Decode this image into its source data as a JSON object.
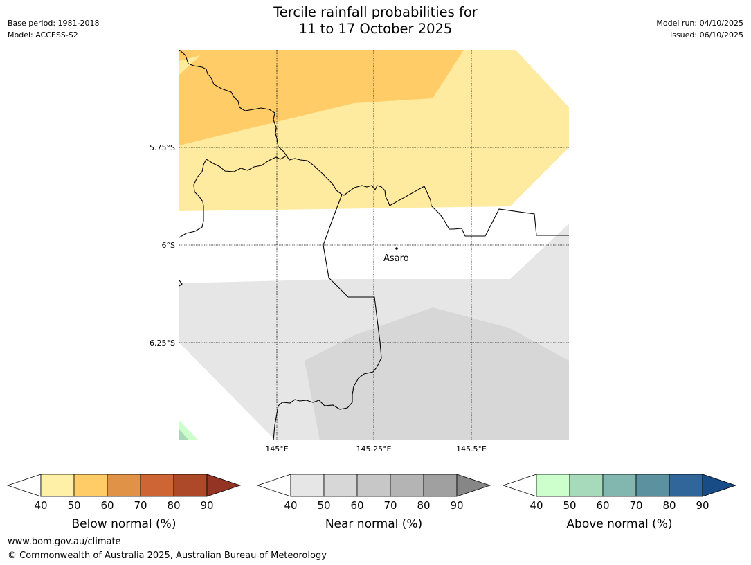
{
  "title": {
    "line1": "Tercile rainfall probabilities for",
    "line2": "11 to 17 October 2025"
  },
  "meta_left": {
    "base_period": "Base period: 1981-2018",
    "model": "Model: ACCESS-S2"
  },
  "meta_right": {
    "model_run": "Model run: 04/10/2025",
    "issued": "Issued: 06/10/2025"
  },
  "map": {
    "lat_labels": [
      "5.75°S",
      "6°S",
      "6.25°S"
    ],
    "lon_labels": [
      "145°E",
      "145.25°E",
      "145.5°E"
    ],
    "place": "Asaro"
  },
  "legends": [
    {
      "label": "Below normal (%)",
      "ticks": [
        "40",
        "50",
        "60",
        "70",
        "80",
        "90"
      ],
      "colors": [
        "#fff0a7",
        "#ffcc68",
        "#e09246",
        "#cd6535",
        "#ad4828"
      ],
      "extend_color": "#943425"
    },
    {
      "label": "Near normal (%)",
      "ticks": [
        "40",
        "50",
        "60",
        "70",
        "80",
        "90"
      ],
      "colors": [
        "#e6e6e6",
        "#d7d7d7",
        "#c7c7c7",
        "#b4b4b4",
        "#a0a0a0"
      ],
      "extend_color": "#868686"
    },
    {
      "label": "Above normal (%)",
      "ticks": [
        "40",
        "50",
        "60",
        "70",
        "80",
        "90"
      ],
      "colors": [
        "#ccffcc",
        "#a6dabb",
        "#82b7b0",
        "#5c91a0",
        "#306699"
      ],
      "extend_color": "#174c87"
    }
  ],
  "footer": {
    "url": "www.bom.gov.au/climate",
    "copyright": "© Commonwealth of Australia 2025, Australian Bureau of Meteorology"
  }
}
